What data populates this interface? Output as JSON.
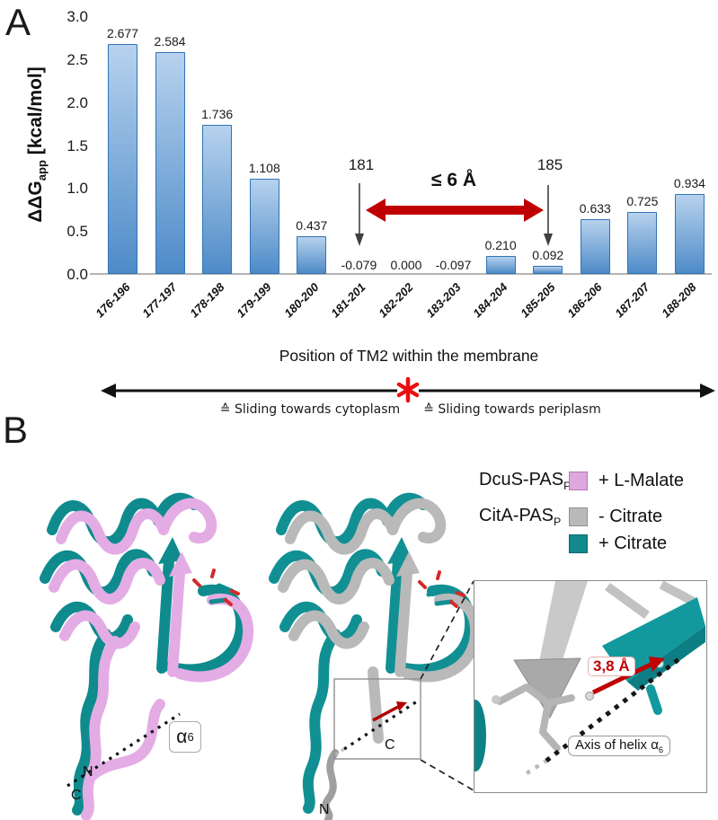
{
  "figure": {
    "panel_a_label": "A",
    "panel_b_label": "B"
  },
  "chart_data": {
    "type": "bar",
    "title": "",
    "xlabel": "Position of TM2 within the membrane",
    "ylabel": "ΔΔGapp [kcal/mol]",
    "ylabel_parts": {
      "main": "ΔΔG",
      "sub": "app",
      "rest": " [kcal/mol]"
    },
    "ylim": [
      0,
      3.0
    ],
    "y_ticks": [
      "3.0",
      "2.5",
      "2.0",
      "1.5",
      "1.0",
      "0.5",
      "0.0"
    ],
    "categories": [
      "176-196",
      "177-197",
      "178-198",
      "179-199",
      "180-200",
      "181-201",
      "182-202",
      "183-203",
      "184-204",
      "185-205",
      "186-206",
      "187-207",
      "188-208"
    ],
    "values": [
      2.677,
      2.584,
      1.736,
      1.108,
      0.437,
      -0.079,
      0.0,
      -0.097,
      0.21,
      0.092,
      0.633,
      0.725,
      0.934
    ],
    "value_labels": [
      "2.677",
      "2.584",
      "1.736",
      "1.108",
      "0.437",
      "-0.079",
      "0.000",
      "-0.097",
      "0.210",
      "0.092",
      "0.633",
      "0.725",
      "0.934"
    ],
    "grid": false,
    "legend_position": "none",
    "bar_colors": {
      "top": "#b7d2ee",
      "bottom": "#4e8bc8",
      "border": "#2e74b5"
    },
    "annotations": {
      "left_marker": {
        "label": "181",
        "points_to": "181-201"
      },
      "right_marker": {
        "label": "185",
        "points_to": "185-205"
      },
      "distance_label": "≤ 6 Å",
      "arrow_color": "#c00000"
    },
    "footer": {
      "left_label": "≙ Sliding towards cytoplasm",
      "right_label": "≙ Sliding towards periplasm",
      "marker": "*",
      "marker_color": "#e81010"
    }
  },
  "panel_b": {
    "legend": {
      "rows": [
        {
          "protein": "DcuS-PAS",
          "protein_sub": "P",
          "state": "+ L-Malate",
          "swatch_color": "#dfa7df"
        },
        {
          "protein": "CitA-PAS",
          "protein_sub": "P",
          "state": "- Citrate",
          "swatch_color": "#b9b9b9"
        },
        {
          "protein": "",
          "protein_sub": "",
          "state": "+ Citrate",
          "swatch_color": "#12898c"
        }
      ]
    },
    "labels": {
      "alpha6_main": "α",
      "alpha6_sub": "6",
      "left_n": "N",
      "left_c": "C",
      "mid_c": "C",
      "mid_n": "N"
    },
    "inset": {
      "distance_label": "3,8 Å",
      "axis_label_main": "Axis of helix α",
      "axis_label_sub": "6"
    },
    "colors": {
      "dcus_malate": "#dfa7df",
      "cita_apo": "#b9b9b9",
      "cita_citrate": "#12898c"
    }
  }
}
